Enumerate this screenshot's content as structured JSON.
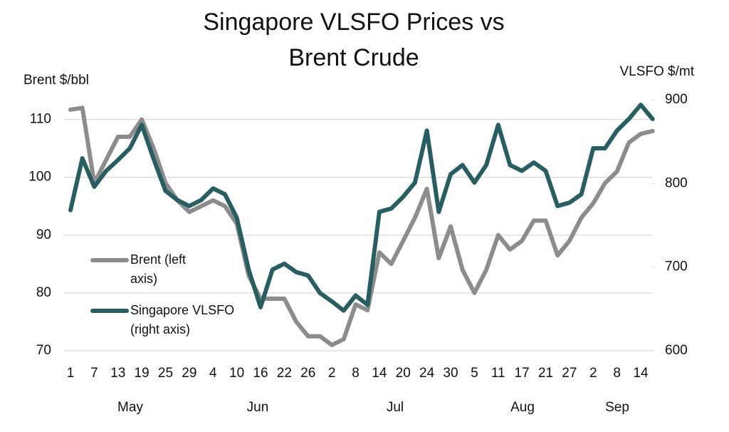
{
  "chart_data": {
    "type": "line",
    "title": "Singapore VLSFO Prices vs Brent Crude",
    "y_label": "Brent $/bbl",
    "y2_label": "VLSFO $/mt",
    "categories": [
      "1",
      null,
      "7",
      null,
      "13",
      null,
      "19",
      null,
      "25",
      null,
      "29",
      null,
      "4",
      null,
      "10",
      null,
      "16",
      null,
      "22",
      null,
      "26",
      null,
      "2",
      null,
      "8",
      null,
      "14",
      null,
      "20",
      null,
      "24",
      null,
      "30",
      null,
      "5",
      null,
      "11",
      null,
      "17",
      null,
      "21",
      null,
      "27",
      null,
      "2",
      null,
      "8",
      null,
      "14",
      null
    ],
    "months": [
      "May",
      "Jun",
      "Jul",
      "Aug",
      "Sep"
    ],
    "series": [
      {
        "name": "Brent (left axis)",
        "color": "#8c8c8c",
        "axis": "y",
        "values": [
          111.7,
          112,
          99,
          103,
          107,
          107,
          110,
          105,
          99,
          96,
          94,
          95,
          96,
          95,
          92,
          83,
          79,
          79,
          79,
          75,
          72.5,
          72.5,
          71,
          72,
          78,
          77,
          87,
          85,
          89,
          93,
          98,
          86,
          91.5,
          84,
          80,
          84,
          90,
          87.5,
          89,
          92.5,
          92.5,
          86.5,
          89,
          93,
          95.5,
          99,
          101,
          106,
          107.5,
          108
        ]
      },
      {
        "name": "Singapore VLSFO (right axis)",
        "color": "#285e62",
        "axis": "y2",
        "values": [
          768,
          830,
          796,
          815,
          828,
          842,
          870,
          829,
          791,
          780,
          773,
          780,
          794,
          787,
          759,
          697,
          652,
          697,
          704,
          694,
          690,
          669,
          659,
          648,
          666,
          655,
          766,
          770,
          784,
          801,
          863,
          766,
          811,
          822,
          801,
          822,
          870,
          822,
          815,
          825,
          815,
          773,
          777,
          787,
          842,
          842,
          863,
          877,
          894,
          877
        ]
      }
    ],
    "ylim": [
      70,
      115
    ],
    "yticks": [
      70,
      80,
      90,
      100,
      110
    ],
    "y2lim": [
      600,
      911
    ],
    "y2ticks": [
      600,
      700,
      800,
      900
    ],
    "grid": true
  }
}
